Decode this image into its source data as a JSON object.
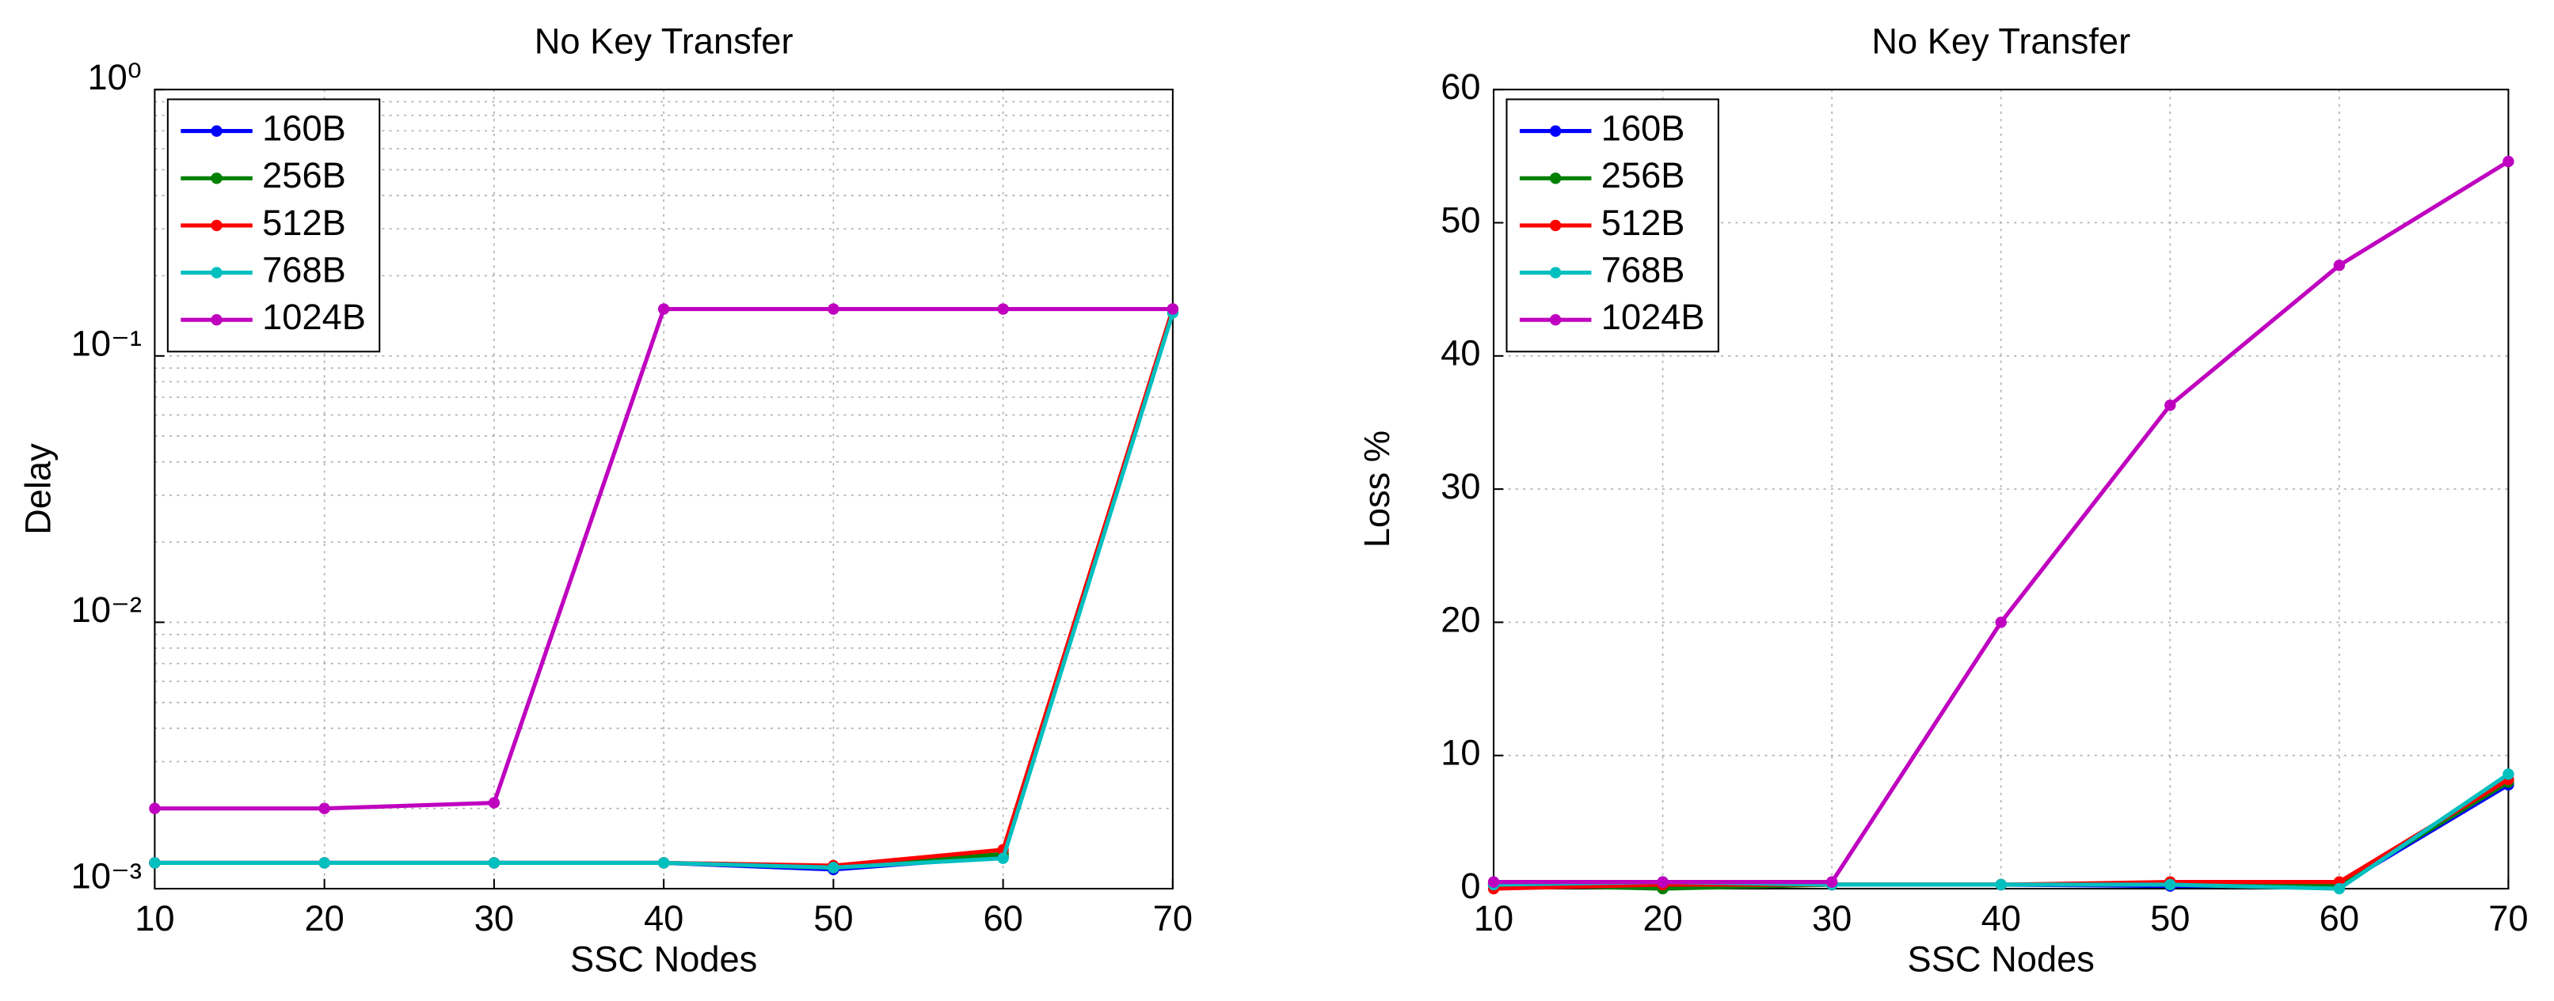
{
  "chart_data": [
    {
      "type": "line",
      "title": "No Key Transfer",
      "x_label": "SSC Nodes",
      "y_label": "Delay",
      "x": [
        10,
        20,
        30,
        40,
        50,
        60,
        70
      ],
      "xlim": [
        10,
        70
      ],
      "xticks": [
        10,
        20,
        30,
        40,
        50,
        60,
        70
      ],
      "ylim": [
        0.001,
        1
      ],
      "yscale": "log",
      "yticks": [
        {
          "value": 0.001,
          "label": "10⁻³"
        },
        {
          "value": 0.01,
          "label": "10⁻²"
        },
        {
          "value": 0.1,
          "label": "10⁻¹"
        },
        {
          "value": 1,
          "label": "10⁰"
        }
      ],
      "grid": true,
      "legend": "upper left",
      "series": [
        {
          "name": "160B",
          "color": "#0000ff",
          "values": [
            0.00125,
            0.00125,
            0.00125,
            0.00125,
            0.00118,
            0.00132,
            0.15
          ]
        },
        {
          "name": "256B",
          "color": "#008000",
          "values": [
            0.00125,
            0.00125,
            0.00125,
            0.00125,
            0.0012,
            0.00135,
            0.15
          ]
        },
        {
          "name": "512B",
          "color": "#ff0000",
          "values": [
            0.00125,
            0.00125,
            0.00125,
            0.00125,
            0.00122,
            0.0014,
            0.15
          ]
        },
        {
          "name": "768B",
          "color": "#00bfbf",
          "values": [
            0.00125,
            0.00125,
            0.00125,
            0.00125,
            0.0012,
            0.0013,
            0.145
          ]
        },
        {
          "name": "1024B",
          "color": "#bf00bf",
          "values": [
            0.002,
            0.002,
            0.0021,
            0.15,
            0.15,
            0.15,
            0.15
          ]
        }
      ]
    },
    {
      "type": "line",
      "title": "No Key Transfer",
      "x_label": "SSC Nodes",
      "y_label": "Loss %",
      "x": [
        10,
        20,
        30,
        40,
        50,
        60,
        70
      ],
      "xlim": [
        10,
        70
      ],
      "xticks": [
        10,
        20,
        30,
        40,
        50,
        60,
        70
      ],
      "ylim": [
        0,
        60
      ],
      "yticks": [
        0,
        10,
        20,
        30,
        40,
        50,
        60
      ],
      "grid": true,
      "legend": "upper left",
      "series": [
        {
          "name": "160B",
          "color": "#0000ff",
          "values": [
            0.3,
            0.2,
            0.3,
            0.3,
            0.2,
            0.2,
            7.8
          ]
        },
        {
          "name": "256B",
          "color": "#008000",
          "values": [
            0.3,
            0,
            0.3,
            0.3,
            0.3,
            0.3,
            8.0
          ]
        },
        {
          "name": "512B",
          "color": "#ff0000",
          "values": [
            0,
            0.3,
            0.3,
            0.3,
            0.5,
            0.5,
            8.2
          ]
        },
        {
          "name": "768B",
          "color": "#00bfbf",
          "values": [
            0.3,
            0.5,
            0.3,
            0.3,
            0.3,
            0,
            8.6
          ]
        },
        {
          "name": "1024B",
          "color": "#bf00bf",
          "values": [
            0.5,
            0.5,
            0.5,
            20,
            36.3,
            46.8,
            54.6
          ]
        }
      ]
    }
  ]
}
